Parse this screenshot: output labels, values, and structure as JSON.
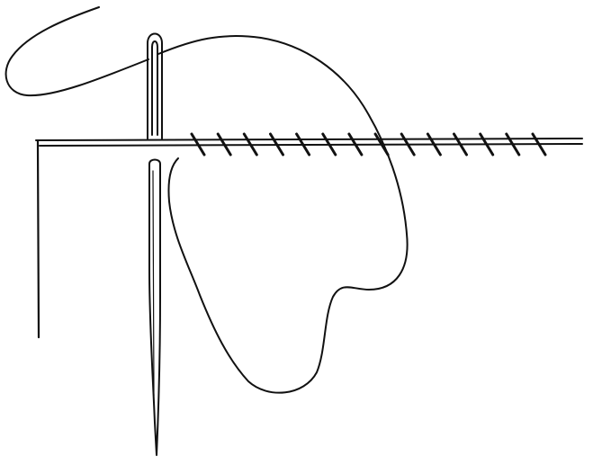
{
  "illustration": {
    "subject": "needle-and-thread-stitch-line",
    "colors": {
      "ink": "#111111",
      "paper": "#ffffff"
    },
    "icons": [
      "needle-icon",
      "thread-icon"
    ],
    "stitch_count": 14
  }
}
